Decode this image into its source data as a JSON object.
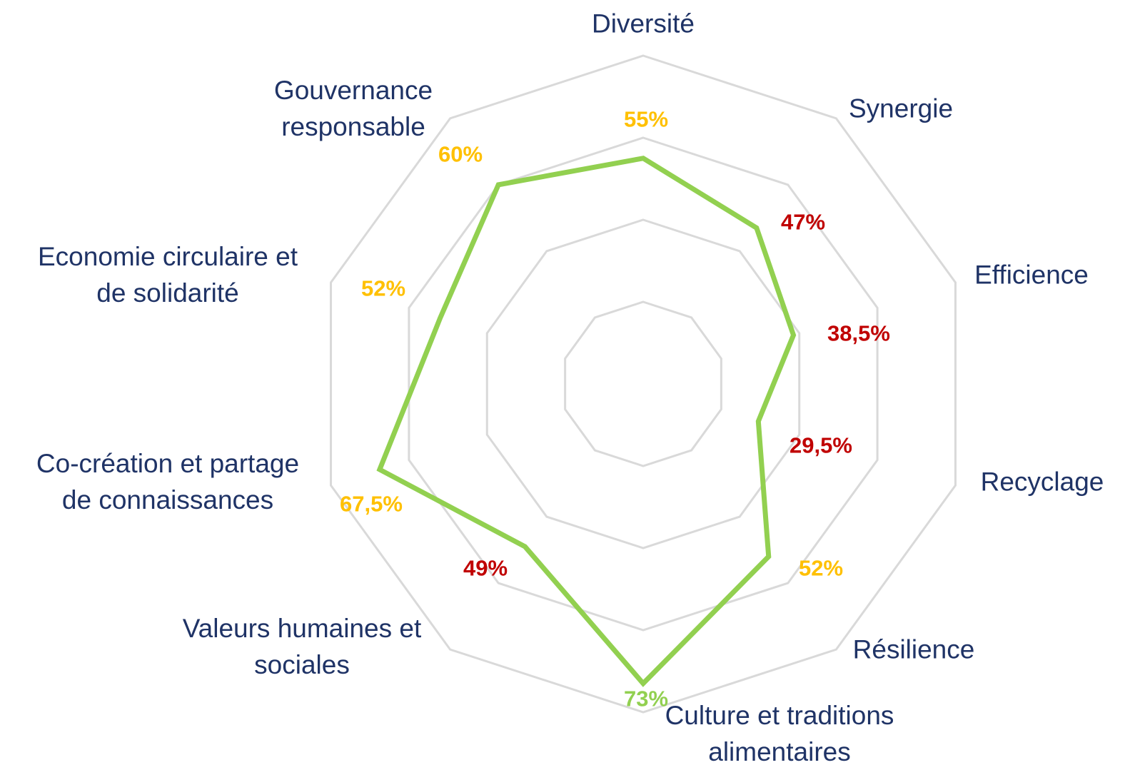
{
  "chart_data": {
    "type": "radar",
    "categories": [
      "Diversité",
      "Synergie",
      "Efficience",
      "Recyclage",
      "Résilience",
      "Culture et traditions alimentaires",
      "Valeurs humaines et\nsociales",
      "Co-création et partage\nde connaissances",
      "Economie circulaire et\nde solidarité",
      "Gouvernance\nresponsable"
    ],
    "values": [
      55,
      47,
      38.5,
      29.5,
      52,
      73,
      49,
      67.5,
      52,
      60
    ],
    "value_labels": [
      "55%",
      "47%",
      "38,5%",
      "29,5%",
      "52%",
      "73%",
      "49%",
      "67,5%",
      "52%",
      "60%"
    ],
    "label_colors": [
      "#ffc000",
      "#c00000",
      "#c00000",
      "#c00000",
      "#ffc000",
      "#92d050",
      "#c00000",
      "#ffc000",
      "#ffc000",
      "#ffc000"
    ],
    "color": "#92d050",
    "ylim": [
      0,
      80
    ],
    "yticks": [
      20,
      40,
      60,
      80
    ],
    "grid": true
  }
}
